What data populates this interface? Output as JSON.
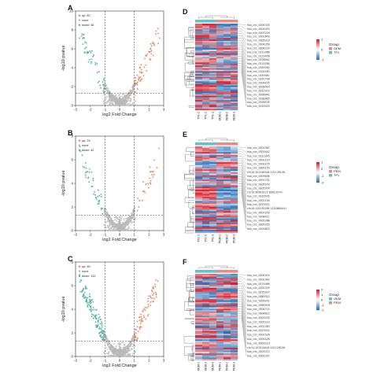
{
  "colors": {
    "up": "#e8825a",
    "down": "#4fb39e",
    "none": "#b8b8b8",
    "heat_high": "#d6232f",
    "heat_mid": "#ffffff",
    "heat_low": "#2a73b8",
    "group_a": "#f08a7c",
    "group_b": "#5ec3d3"
  },
  "chart_data": [
    {
      "panel": "A",
      "type": "scatter",
      "xlabel": "log2 Fold Change",
      "ylabel": "-log10 pvalue",
      "xlim": [
        -3,
        3
      ],
      "ylim": [
        0,
        10
      ],
      "xticks": [
        "-3",
        "-2",
        "-1",
        "0",
        "1",
        "2",
        "3"
      ],
      "yticks": [
        "0",
        "2",
        "4",
        "6",
        "8",
        "10"
      ],
      "legend": [
        {
          "label": "up",
          "count": "62"
        },
        {
          "label": "none",
          "count": ""
        },
        {
          "label": "down",
          "count": "48"
        }
      ],
      "legend_position": "top-left",
      "vlines": [
        -1,
        1
      ],
      "hline": 1.3,
      "seed": 11,
      "n_none": 380,
      "n_up": 62,
      "n_down": 48
    },
    {
      "panel": "B",
      "type": "scatter",
      "xlabel": "log2 Fold Change",
      "ylabel": "-log10 pvalue",
      "xlim": [
        -3,
        3
      ],
      "ylim": [
        0,
        8
      ],
      "xticks": [
        "-3",
        "-2",
        "-1",
        "0",
        "1",
        "2",
        "3"
      ],
      "yticks": [
        "0",
        "2",
        "4",
        "6",
        "8"
      ],
      "legend": [
        {
          "label": "up",
          "count": "29"
        },
        {
          "label": "none",
          "count": ""
        },
        {
          "label": "down",
          "count": "42"
        }
      ],
      "legend_position": "top-left",
      "vlines": [
        -1,
        1
      ],
      "hline": 1.3,
      "seed": 23,
      "n_none": 380,
      "n_up": 29,
      "n_down": 42
    },
    {
      "panel": "C",
      "type": "scatter",
      "xlabel": "log2 Fold Change",
      "ylabel": "-log10 pvalue",
      "xlim": [
        -3,
        3
      ],
      "ylim": [
        0,
        8
      ],
      "xticks": [
        "-3",
        "-2",
        "-1",
        "0",
        "1",
        "2",
        "3"
      ],
      "yticks": [
        "0",
        "2",
        "4",
        "6",
        "8"
      ],
      "legend": [
        {
          "label": "up",
          "count": "69"
        },
        {
          "label": "none",
          "count": ""
        },
        {
          "label": "down",
          "count": "132"
        }
      ],
      "legend_position": "top-left",
      "vlines": [
        -1,
        1
      ],
      "hline": 1.3,
      "seed": 37,
      "n_none": 380,
      "n_up": 69,
      "n_down": 132
    },
    {
      "panel": "D",
      "type": "heatmap",
      "columns": [
        "TF1-1",
        "TF1-2",
        "TF1-3",
        "OEM-1",
        "OEM-2",
        "OEM-3"
      ],
      "groups": [
        "TF1",
        "TF1",
        "TF1",
        "OEM",
        "OEM",
        "OEM"
      ],
      "legend_title": "Group",
      "legend_groups": [
        {
          "label": "OEM",
          "color_key": "group_a"
        },
        {
          "label": "TF1",
          "color_key": "group_b"
        }
      ],
      "scale_ticks": [
        "1",
        "0",
        "-1"
      ],
      "rows": 60,
      "seed": 5,
      "row_labels": [
        "hsa_circ_0005335",
        "hsa_circ_0005019",
        "hsa_circ_0003216",
        "hsa_circ_0001649",
        "hsa_circ_0005019",
        "hsa_circ_0004356",
        "hsa_circ_0004214",
        "hsa_circ_0112066",
        "hsa_circ_0123456",
        "hsa_circ_0078942",
        "hsa_circ_0119284",
        "hsa_circ_0049282",
        "hsa_circ_0102283",
        "hsa_circ_0145481",
        "hsa_circ_0031746",
        "hsa_circ_0004435",
        "hsa_circ_0008003",
        "hsa_circ_0012971",
        "hsa_circ_0006042",
        "hsa_circ_0028465",
        "hsa_circ_0026535",
        "hsa_circ_0010025"
      ]
    },
    {
      "panel": "E",
      "type": "heatmap",
      "columns": [
        "TF1-1",
        "TF1-2",
        "TF1-3",
        "PEM-1",
        "PEM-2",
        "PEM-3"
      ],
      "groups": [
        "TF1",
        "TF1",
        "TF1",
        "PEM",
        "PEM",
        "PEM"
      ],
      "legend_title": "Group",
      "legend_groups": [
        {
          "label": "PEM",
          "color_key": "group_a"
        },
        {
          "label": "TF1",
          "color_key": "group_b"
        }
      ],
      "scale_ticks": [
        "1",
        "0",
        "-1",
        "-2"
      ],
      "rows": 60,
      "seed": 9,
      "row_labels": [
        "hsa_circ_0001567",
        "hsa_circ_0003442",
        "hsa_circ_0012345",
        "hsa_circ_0001110",
        "hsa_circ_0002174",
        "hsa_circ_0005153",
        "chr10:101346144-101126156-",
        "hsa_circ_0003636",
        "hsa_circ_0007231",
        "hsa_circ_0005578",
        "hsa_circ_0005374",
        "chr10:90403211-89413374-",
        "hsa_circ_0016535",
        "hsa_circ_0001134",
        "hsa_circ_0075521",
        "chr10:115135199-115268444+",
        "hsa_circ_0007209",
        "hsa_circ_0008411",
        "hsa_circ_0005268",
        "hsa_circ_0005255",
        "hsa_circ_0003653"
      ]
    },
    {
      "panel": "F",
      "type": "heatmap",
      "columns": [
        "OEM-1",
        "OEM-2",
        "OEM-3",
        "PEM-1",
        "PEM-2",
        "PEM-3"
      ],
      "groups": [
        "OEM",
        "OEM",
        "OEM",
        "PEM",
        "PEM",
        "PEM"
      ],
      "legend_title": "Group",
      "legend_groups": [
        {
          "label": "OEM",
          "color_key": "group_b"
        },
        {
          "label": "PEM",
          "color_key": "group_a"
        }
      ],
      "scale_ticks": [
        "2",
        "1",
        "0",
        "-1",
        "-2"
      ],
      "rows": 62,
      "seed": 15,
      "row_labels": [
        "hsa_circ_0004919",
        "hsa_circ_0001342",
        "hsa_circ_0074466",
        "hsa_circ_0001325",
        "hsa_circ_0075017",
        "hsa_circ_0089312",
        "hsa_circ_0005432",
        "hsa_circ_0069016",
        "hsa_circ_0004715",
        "hsa_circ_0004812",
        "hsa_circ_0003235",
        "hsa_circ_0005219",
        "hsa_circ_0001283",
        "hsa_circ_0023241",
        "hsa_circ_0001526",
        "hsa_circ_0005426",
        "hsa_circ_0003210",
        "chr11:101514444-101126156-",
        "hsa_circ_0003372",
        "hsa_circ_0001247"
      ]
    }
  ]
}
